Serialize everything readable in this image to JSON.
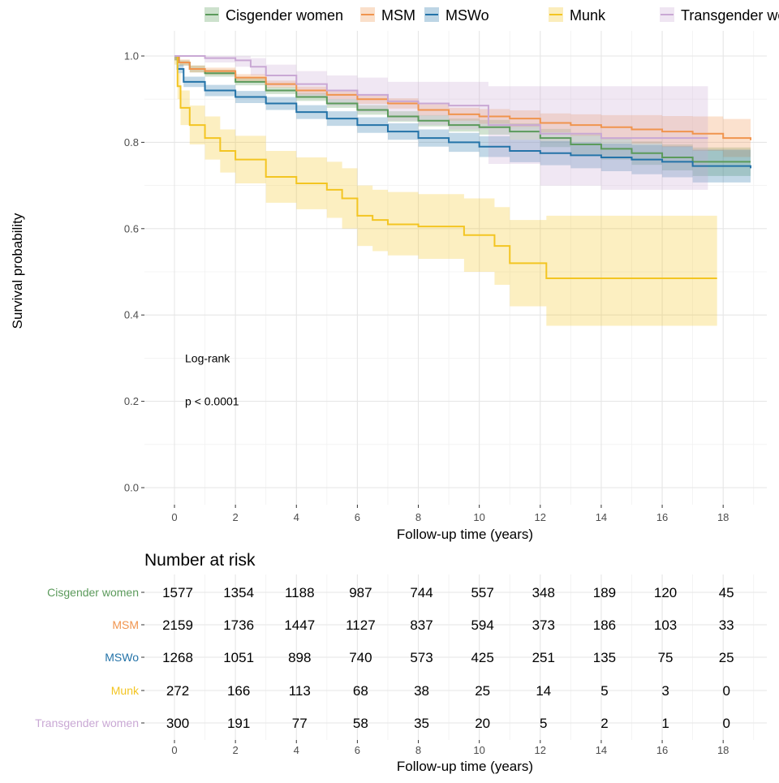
{
  "chart_data": [
    {
      "type": "line",
      "title": "",
      "subtitle": "",
      "xlabel": "Follow-up time (years)",
      "ylabel": "Survival probability",
      "xlim": [
        0,
        19
      ],
      "ylim": [
        0,
        1
      ],
      "x_ticks": [
        0,
        2,
        4,
        6,
        8,
        10,
        12,
        14,
        16,
        18
      ],
      "y_ticks": [
        0.0,
        0.2,
        0.4,
        0.6,
        0.8,
        1.0
      ],
      "y_tick_labels": [
        "0.0",
        "0.2",
        "0.4",
        "0.6",
        "0.8",
        "1.0"
      ],
      "grid": true,
      "legend_position": "top",
      "step": true,
      "confidence_bands": true,
      "annotations": [
        {
          "text": "Log-rank",
          "x": 0.4,
          "y": 0.3
        },
        {
          "text": "p < 0.0001",
          "x": 0.4,
          "y": 0.2
        }
      ],
      "series": [
        {
          "name": "Cisgender women",
          "color": "#5b9a5b",
          "points": [
            [
              0,
              1.0
            ],
            [
              0.15,
              0.985
            ],
            [
              0.5,
              0.97
            ],
            [
              1,
              0.96
            ],
            [
              2,
              0.94
            ],
            [
              3,
              0.92
            ],
            [
              4,
              0.905
            ],
            [
              5,
              0.89
            ],
            [
              6,
              0.875
            ],
            [
              7,
              0.86
            ],
            [
              8,
              0.85
            ],
            [
              9,
              0.84
            ],
            [
              10,
              0.835
            ],
            [
              11,
              0.825
            ],
            [
              12,
              0.81
            ],
            [
              13,
              0.795
            ],
            [
              14,
              0.785
            ],
            [
              15,
              0.775
            ],
            [
              16,
              0.765
            ],
            [
              17,
              0.755
            ],
            [
              18.9,
              0.755
            ]
          ],
          "ci_lower": [
            0.99,
            0.978,
            0.962,
            0.952,
            0.932,
            0.912,
            0.896,
            0.88,
            0.864,
            0.848,
            0.837,
            0.825,
            0.818,
            0.806,
            0.789,
            0.772,
            0.76,
            0.748,
            0.735,
            0.722,
            0.715
          ],
          "ci_upper": [
            1.0,
            0.99,
            0.978,
            0.968,
            0.948,
            0.928,
            0.914,
            0.9,
            0.886,
            0.872,
            0.863,
            0.855,
            0.852,
            0.844,
            0.831,
            0.818,
            0.81,
            0.802,
            0.795,
            0.788,
            0.795
          ]
        },
        {
          "name": "MSM",
          "color": "#f0944e",
          "points": [
            [
              0,
              1.0
            ],
            [
              0.15,
              0.985
            ],
            [
              0.5,
              0.97
            ],
            [
              1,
              0.965
            ],
            [
              2,
              0.95
            ],
            [
              3,
              0.935
            ],
            [
              4,
              0.92
            ],
            [
              5,
              0.91
            ],
            [
              6,
              0.9
            ],
            [
              7,
              0.89
            ],
            [
              8,
              0.875
            ],
            [
              9,
              0.865
            ],
            [
              10,
              0.86
            ],
            [
              11,
              0.855
            ],
            [
              12,
              0.845
            ],
            [
              13,
              0.84
            ],
            [
              14,
              0.835
            ],
            [
              15,
              0.83
            ],
            [
              16,
              0.825
            ],
            [
              17,
              0.82
            ],
            [
              18,
              0.81
            ],
            [
              18.9,
              0.805
            ]
          ],
          "ci_lower": [
            0.99,
            0.978,
            0.962,
            0.957,
            0.942,
            0.927,
            0.911,
            0.9,
            0.889,
            0.878,
            0.862,
            0.85,
            0.843,
            0.836,
            0.823,
            0.815,
            0.807,
            0.797,
            0.789,
            0.78,
            0.766,
            0.755
          ],
          "ci_upper": [
            1.0,
            0.992,
            0.978,
            0.973,
            0.958,
            0.943,
            0.929,
            0.92,
            0.911,
            0.902,
            0.888,
            0.88,
            0.877,
            0.874,
            0.867,
            0.865,
            0.863,
            0.863,
            0.861,
            0.86,
            0.854,
            0.855
          ]
        },
        {
          "name": "MSWo",
          "color": "#2473a8",
          "points": [
            [
              0,
              1.0
            ],
            [
              0.1,
              0.97
            ],
            [
              0.3,
              0.94
            ],
            [
              1,
              0.92
            ],
            [
              2,
              0.905
            ],
            [
              3,
              0.89
            ],
            [
              4,
              0.87
            ],
            [
              5,
              0.855
            ],
            [
              6,
              0.84
            ],
            [
              7,
              0.825
            ],
            [
              8,
              0.81
            ],
            [
              9,
              0.8
            ],
            [
              10,
              0.79
            ],
            [
              11,
              0.78
            ],
            [
              12,
              0.775
            ],
            [
              13,
              0.77
            ],
            [
              14,
              0.765
            ],
            [
              15,
              0.76
            ],
            [
              16,
              0.755
            ],
            [
              17,
              0.745
            ],
            [
              18.9,
              0.74
            ]
          ],
          "ci_lower": [
            0.99,
            0.96,
            0.928,
            0.907,
            0.891,
            0.875,
            0.854,
            0.838,
            0.822,
            0.806,
            0.79,
            0.778,
            0.766,
            0.754,
            0.747,
            0.74,
            0.733,
            0.726,
            0.719,
            0.707,
            0.698
          ],
          "ci_upper": [
            1.0,
            0.98,
            0.952,
            0.933,
            0.919,
            0.905,
            0.886,
            0.872,
            0.858,
            0.844,
            0.83,
            0.822,
            0.814,
            0.806,
            0.803,
            0.8,
            0.797,
            0.794,
            0.791,
            0.783,
            0.782
          ]
        },
        {
          "name": "Munk",
          "color": "#f3c522",
          "points": [
            [
              0,
              1.0
            ],
            [
              0.1,
              0.93
            ],
            [
              0.2,
              0.88
            ],
            [
              0.5,
              0.84
            ],
            [
              1,
              0.81
            ],
            [
              1.5,
              0.78
            ],
            [
              2,
              0.76
            ],
            [
              3,
              0.72
            ],
            [
              4,
              0.705
            ],
            [
              5,
              0.69
            ],
            [
              5.5,
              0.67
            ],
            [
              6,
              0.63
            ],
            [
              6.5,
              0.62
            ],
            [
              7,
              0.61
            ],
            [
              8,
              0.605
            ],
            [
              9.5,
              0.585
            ],
            [
              10.5,
              0.56
            ],
            [
              11,
              0.52
            ],
            [
              12.2,
              0.485
            ],
            [
              17.8,
              0.485
            ]
          ],
          "ci_lower": [
            0.98,
            0.9,
            0.84,
            0.795,
            0.76,
            0.73,
            0.705,
            0.66,
            0.645,
            0.625,
            0.6,
            0.56,
            0.548,
            0.538,
            0.53,
            0.5,
            0.47,
            0.42,
            0.375,
            0.375
          ],
          "ci_upper": [
            1.0,
            0.96,
            0.92,
            0.885,
            0.86,
            0.83,
            0.815,
            0.78,
            0.765,
            0.755,
            0.74,
            0.7,
            0.69,
            0.685,
            0.68,
            0.67,
            0.65,
            0.62,
            0.63,
            0.63
          ]
        },
        {
          "name": "Transgender women",
          "color": "#c9a8d4",
          "points": [
            [
              0,
              1.0
            ],
            [
              1,
              0.995
            ],
            [
              2,
              0.99
            ],
            [
              2.5,
              0.975
            ],
            [
              3,
              0.955
            ],
            [
              4,
              0.935
            ],
            [
              5,
              0.92
            ],
            [
              6,
              0.91
            ],
            [
              7,
              0.895
            ],
            [
              8,
              0.89
            ],
            [
              9,
              0.885
            ],
            [
              10.3,
              0.84
            ],
            [
              12,
              0.82
            ],
            [
              14,
              0.81
            ],
            [
              17.5,
              0.81
            ]
          ],
          "ci_lower": [
            1.0,
            0.985,
            0.975,
            0.955,
            0.93,
            0.905,
            0.885,
            0.87,
            0.85,
            0.84,
            0.83,
            0.75,
            0.7,
            0.69,
            0.68
          ],
          "ci_upper": [
            1.0,
            1.0,
            1.0,
            0.995,
            0.98,
            0.965,
            0.955,
            0.95,
            0.94,
            0.94,
            0.94,
            0.93,
            0.93,
            0.93,
            0.93
          ]
        }
      ]
    },
    {
      "type": "table",
      "title": "Number at risk",
      "xlabel": "Follow-up time (years)",
      "columns": [
        0,
        2,
        4,
        6,
        8,
        10,
        12,
        14,
        16,
        18
      ],
      "rows": [
        {
          "label": "Cisgender women",
          "color": "#5b9a5b",
          "values": [
            "1577",
            "1354",
            "1188",
            "987",
            "744",
            "557",
            "348",
            "189",
            "120",
            "45"
          ]
        },
        {
          "label": "MSM",
          "color": "#f0944e",
          "values": [
            "2159",
            "1736",
            "1447",
            "1127",
            "837",
            "594",
            "373",
            "186",
            "103",
            "33"
          ]
        },
        {
          "label": "MSWo",
          "color": "#2473a8",
          "values": [
            "1268",
            "1051",
            "898",
            "740",
            "573",
            "425",
            "251",
            "135",
            "75",
            "25"
          ]
        },
        {
          "label": "Munk",
          "color": "#f3c522",
          "values": [
            "272",
            "166",
            "113",
            "68",
            "38",
            "25",
            "14",
            "5",
            "3",
            "0"
          ]
        },
        {
          "label": "Transgender women",
          "color": "#c9a8d4",
          "values": [
            "300",
            "191",
            "77",
            "58",
            "35",
            "20",
            "5",
            "2",
            "1",
            "0"
          ]
        }
      ]
    }
  ]
}
